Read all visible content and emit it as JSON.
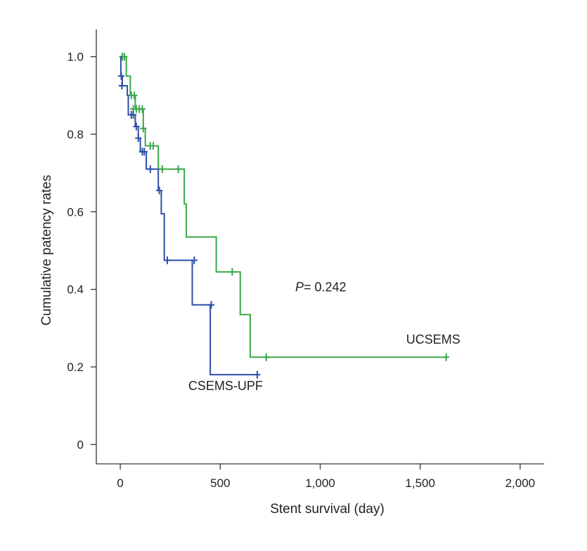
{
  "chart_data": {
    "type": "line",
    "subtype": "kaplan-meier step",
    "title": "",
    "xlabel": "Stent survival (day)",
    "ylabel": "Cumulative patency rates",
    "xlim": [
      -120,
      2120
    ],
    "ylim": [
      -0.05,
      1.07
    ],
    "x_ticks": [
      0,
      500,
      1000,
      1500,
      2000
    ],
    "x_tick_labels": [
      "0",
      "500",
      "1,000",
      "1,500",
      "2,000"
    ],
    "y_ticks": [
      0,
      0.2,
      0.4,
      0.6,
      0.8,
      1.0
    ],
    "y_tick_labels": [
      "0",
      "0.2",
      "0.4",
      "0.6",
      "0.8",
      "1.0"
    ],
    "grid": false,
    "series": [
      {
        "name": "UCSEMS",
        "color": "#3aa84a",
        "steps": [
          [
            0,
            1.0
          ],
          [
            30,
            0.95
          ],
          [
            50,
            0.9
          ],
          [
            75,
            0.865
          ],
          [
            115,
            0.815
          ],
          [
            125,
            0.77
          ],
          [
            190,
            0.71
          ],
          [
            320,
            0.62
          ],
          [
            330,
            0.535
          ],
          [
            480,
            0.445
          ],
          [
            600,
            0.335
          ],
          [
            650,
            0.225
          ],
          [
            1630,
            0.225
          ]
        ],
        "censor_marks": [
          [
            10,
            1.0
          ],
          [
            20,
            1.0
          ],
          [
            55,
            0.9
          ],
          [
            70,
            0.9
          ],
          [
            65,
            0.865
          ],
          [
            80,
            0.865
          ],
          [
            95,
            0.865
          ],
          [
            110,
            0.865
          ],
          [
            115,
            0.815
          ],
          [
            150,
            0.77
          ],
          [
            165,
            0.77
          ],
          [
            210,
            0.71
          ],
          [
            290,
            0.71
          ],
          [
            560,
            0.445
          ],
          [
            730,
            0.225
          ],
          [
            1630,
            0.225
          ]
        ]
      },
      {
        "name": "CSEMS-UPF",
        "color": "#2d4fa8",
        "steps": [
          [
            0,
            1.0
          ],
          [
            3,
            0.95
          ],
          [
            10,
            0.925
          ],
          [
            35,
            0.9
          ],
          [
            40,
            0.85
          ],
          [
            75,
            0.82
          ],
          [
            90,
            0.79
          ],
          [
            100,
            0.755
          ],
          [
            130,
            0.71
          ],
          [
            190,
            0.655
          ],
          [
            205,
            0.595
          ],
          [
            220,
            0.475
          ],
          [
            360,
            0.36
          ],
          [
            450,
            0.18
          ],
          [
            690,
            0.18
          ]
        ],
        "censor_marks": [
          [
            5,
            0.95
          ],
          [
            8,
            0.925
          ],
          [
            55,
            0.85
          ],
          [
            65,
            0.85
          ],
          [
            80,
            0.82
          ],
          [
            90,
            0.79
          ],
          [
            110,
            0.755
          ],
          [
            120,
            0.755
          ],
          [
            150,
            0.71
          ],
          [
            195,
            0.655
          ],
          [
            235,
            0.475
          ],
          [
            370,
            0.475
          ],
          [
            455,
            0.36
          ],
          [
            685,
            0.18
          ]
        ]
      }
    ],
    "annotations": [
      {
        "text": "UCSEMS",
        "x": 1430,
        "y": 0.26
      },
      {
        "text": "CSEMS-UPF",
        "x": 340,
        "y": 0.14
      }
    ],
    "p_value": {
      "label": "P",
      "text": "= 0.242",
      "x": 875,
      "y": 0.395
    }
  }
}
